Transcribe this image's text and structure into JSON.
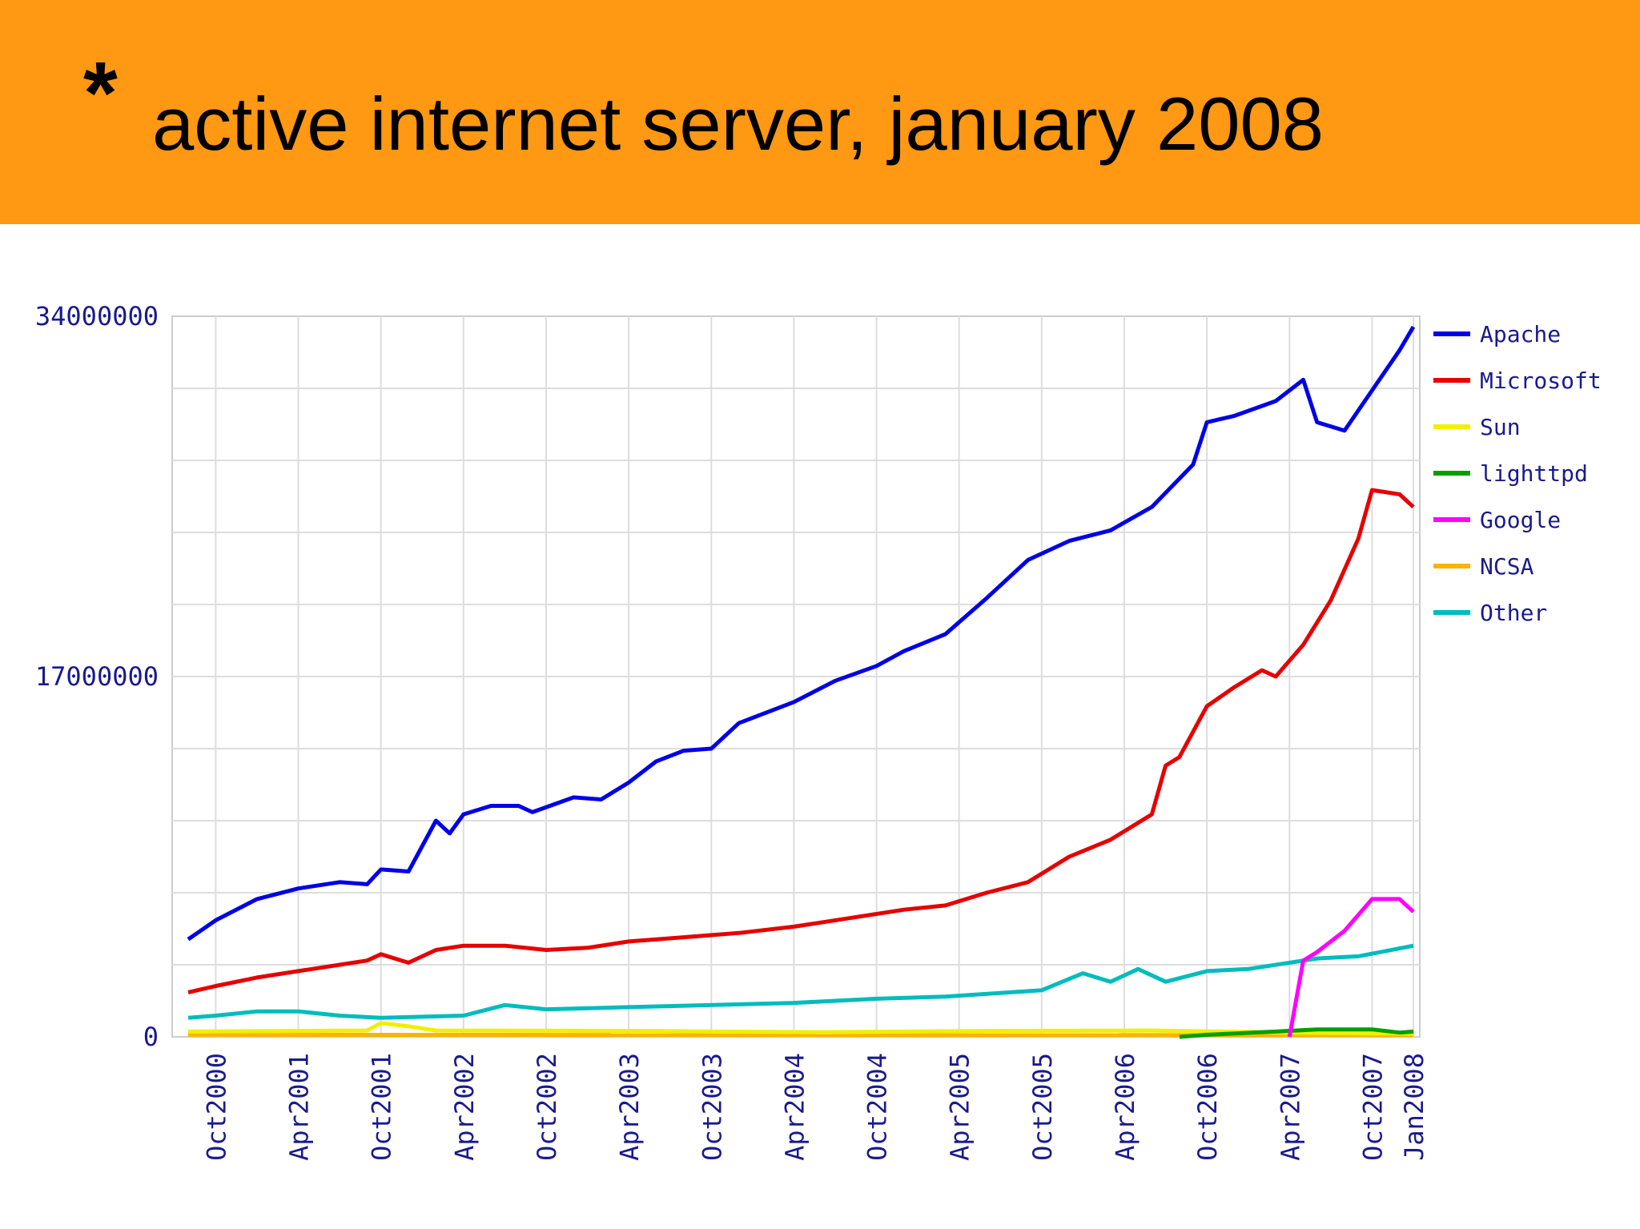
{
  "header": {
    "star": "*",
    "title": "active internet server, january 2008"
  },
  "colors": {
    "banner": "#ff9812",
    "Apache": "#0000e6",
    "Microsoft": "#e60000",
    "Sun": "#f0f000",
    "lighttpd": "#00a000",
    "Google": "#ff00ff",
    "NCSA": "#ffb300",
    "Other": "#00bcbc"
  },
  "chart_data": {
    "type": "line",
    "title": "",
    "xlabel": "",
    "ylabel": "",
    "ylim": [
      0,
      34000000
    ],
    "y_tick_labels": [
      "34000000",
      "17000000",
      "0"
    ],
    "x_tick_labels": [
      "Oct2000",
      "Apr2001",
      "Oct2001",
      "Apr2002",
      "Oct2002",
      "Apr2003",
      "Oct2003",
      "Apr2004",
      "Oct2004",
      "Apr2005",
      "Oct2005",
      "Apr2006",
      "Oct2006",
      "Apr2007",
      "Oct2007",
      "Jan2008"
    ],
    "x_range": [
      "2000-08",
      "2008-01"
    ],
    "grid": true,
    "legend_position": "right",
    "series": [
      {
        "name": "Apache",
        "points": [
          [
            "2000-08",
            4600000
          ],
          [
            "2000-10",
            5500000
          ],
          [
            "2001-01",
            6500000
          ],
          [
            "2001-04",
            7000000
          ],
          [
            "2001-07",
            7300000
          ],
          [
            "2001-09",
            7200000
          ],
          [
            "2001-10",
            7900000
          ],
          [
            "2001-12",
            7800000
          ],
          [
            "2002-02",
            10200000
          ],
          [
            "2002-03",
            9600000
          ],
          [
            "2002-04",
            10500000
          ],
          [
            "2002-06",
            10900000
          ],
          [
            "2002-08",
            10900000
          ],
          [
            "2002-09",
            10600000
          ],
          [
            "2002-12",
            11300000
          ],
          [
            "2003-02",
            11200000
          ],
          [
            "2003-04",
            12000000
          ],
          [
            "2003-06",
            13000000
          ],
          [
            "2003-08",
            13500000
          ],
          [
            "2003-10",
            13600000
          ],
          [
            "2003-12",
            14800000
          ],
          [
            "2004-04",
            15800000
          ],
          [
            "2004-07",
            16800000
          ],
          [
            "2004-10",
            17500000
          ],
          [
            "2004-12",
            18200000
          ],
          [
            "2005-03",
            19000000
          ],
          [
            "2005-06",
            20700000
          ],
          [
            "2005-09",
            22500000
          ],
          [
            "2005-12",
            23400000
          ],
          [
            "2006-03",
            23900000
          ],
          [
            "2006-06",
            25000000
          ],
          [
            "2006-09",
            27000000
          ],
          [
            "2006-10",
            29000000
          ],
          [
            "2006-12",
            29300000
          ],
          [
            "2007-03",
            30000000
          ],
          [
            "2007-05",
            31000000
          ],
          [
            "2007-06",
            29000000
          ],
          [
            "2007-07",
            28800000
          ],
          [
            "2007-08",
            28600000
          ],
          [
            "2007-10",
            30500000
          ],
          [
            "2007-12",
            32400000
          ],
          [
            "2008-01",
            33500000
          ]
        ]
      },
      {
        "name": "Microsoft",
        "points": [
          [
            "2000-08",
            2100000
          ],
          [
            "2000-10",
            2400000
          ],
          [
            "2001-01",
            2800000
          ],
          [
            "2001-04",
            3100000
          ],
          [
            "2001-07",
            3400000
          ],
          [
            "2001-09",
            3600000
          ],
          [
            "2001-10",
            3900000
          ],
          [
            "2001-12",
            3500000
          ],
          [
            "2002-02",
            4100000
          ],
          [
            "2002-04",
            4300000
          ],
          [
            "2002-07",
            4300000
          ],
          [
            "2002-10",
            4100000
          ],
          [
            "2003-01",
            4200000
          ],
          [
            "2003-04",
            4500000
          ],
          [
            "2003-08",
            4700000
          ],
          [
            "2003-12",
            4900000
          ],
          [
            "2004-04",
            5200000
          ],
          [
            "2004-08",
            5600000
          ],
          [
            "2004-12",
            6000000
          ],
          [
            "2005-03",
            6200000
          ],
          [
            "2005-06",
            6800000
          ],
          [
            "2005-09",
            7300000
          ],
          [
            "2005-12",
            8500000
          ],
          [
            "2006-03",
            9300000
          ],
          [
            "2006-06",
            10500000
          ],
          [
            "2006-07",
            12800000
          ],
          [
            "2006-08",
            13200000
          ],
          [
            "2006-10",
            15600000
          ],
          [
            "2006-12",
            16500000
          ],
          [
            "2007-02",
            17300000
          ],
          [
            "2007-03",
            17000000
          ],
          [
            "2007-05",
            18500000
          ],
          [
            "2007-07",
            20600000
          ],
          [
            "2007-09",
            23500000
          ],
          [
            "2007-10",
            25800000
          ],
          [
            "2007-12",
            25600000
          ],
          [
            "2008-01",
            25000000
          ]
        ]
      },
      {
        "name": "Sun",
        "points": [
          [
            "2000-08",
            250000
          ],
          [
            "2001-09",
            300000
          ],
          [
            "2001-10",
            650000
          ],
          [
            "2001-12",
            500000
          ],
          [
            "2002-02",
            300000
          ],
          [
            "2003-06",
            280000
          ],
          [
            "2003-10",
            250000
          ],
          [
            "2004-06",
            220000
          ],
          [
            "2005-06",
            280000
          ],
          [
            "2006-06",
            300000
          ],
          [
            "2007-04",
            200000
          ],
          [
            "2008-01",
            150000
          ]
        ]
      },
      {
        "name": "lighttpd",
        "points": [
          [
            "2006-08",
            0
          ],
          [
            "2006-10",
            100000
          ],
          [
            "2007-03",
            250000
          ],
          [
            "2007-06",
            350000
          ],
          [
            "2007-10",
            350000
          ],
          [
            "2007-12",
            200000
          ],
          [
            "2008-01",
            250000
          ]
        ]
      },
      {
        "name": "Google",
        "points": [
          [
            "2007-04",
            0
          ],
          [
            "2007-05",
            3600000
          ],
          [
            "2007-06",
            4000000
          ],
          [
            "2007-08",
            5000000
          ],
          [
            "2007-10",
            6500000
          ],
          [
            "2007-12",
            6500000
          ],
          [
            "2008-01",
            5900000
          ]
        ]
      },
      {
        "name": "NCSA",
        "points": [
          [
            "2000-08",
            100000
          ],
          [
            "2008-01",
            80000
          ]
        ]
      },
      {
        "name": "Other",
        "points": [
          [
            "2000-08",
            900000
          ],
          [
            "2000-10",
            1000000
          ],
          [
            "2001-01",
            1200000
          ],
          [
            "2001-04",
            1200000
          ],
          [
            "2001-07",
            1000000
          ],
          [
            "2001-10",
            900000
          ],
          [
            "2002-04",
            1000000
          ],
          [
            "2002-07",
            1500000
          ],
          [
            "2002-10",
            1300000
          ],
          [
            "2003-04",
            1400000
          ],
          [
            "2004-04",
            1600000
          ],
          [
            "2004-10",
            1800000
          ],
          [
            "2005-03",
            1900000
          ],
          [
            "2005-10",
            2200000
          ],
          [
            "2006-01",
            3000000
          ],
          [
            "2006-03",
            2600000
          ],
          [
            "2006-05",
            3200000
          ],
          [
            "2006-07",
            2600000
          ],
          [
            "2006-10",
            3100000
          ],
          [
            "2007-01",
            3200000
          ],
          [
            "2007-06",
            3700000
          ],
          [
            "2007-09",
            3800000
          ],
          [
            "2008-01",
            4300000
          ]
        ]
      }
    ]
  }
}
